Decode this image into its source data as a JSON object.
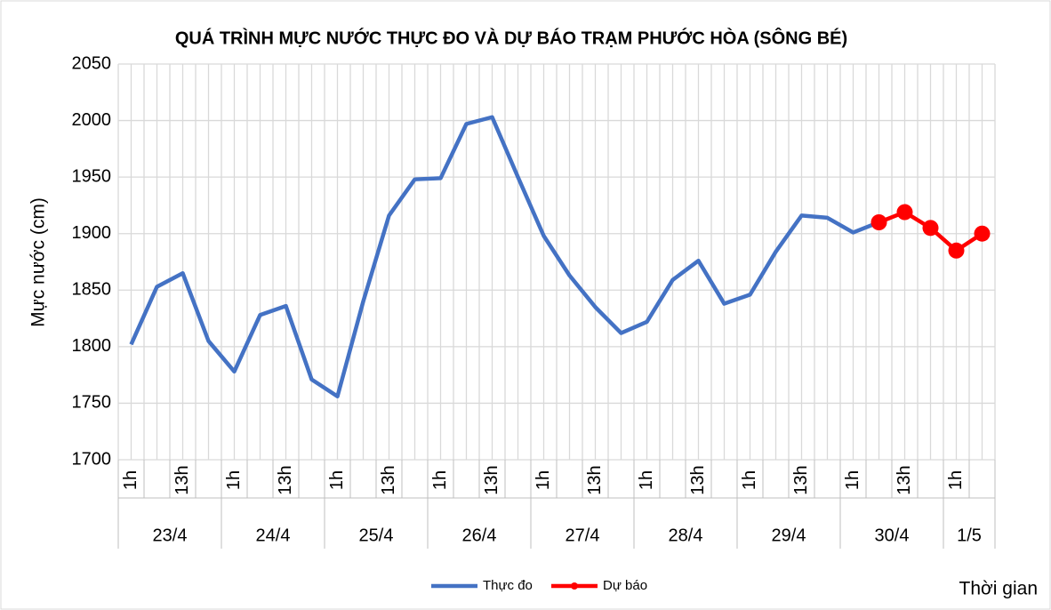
{
  "chart_data": {
    "type": "line",
    "title": "QUÁ TRÌNH MỰC NƯỚC THỰC ĐO VÀ DỰ BÁO TRẠM PHƯỚC HÒA (SÔNG BÉ)",
    "y_label": "Mực nước (cm)",
    "x_label": "Thời gian",
    "categories": [
      "1h",
      null,
      "13h",
      null,
      "1h",
      null,
      "13h",
      null,
      "1h",
      null,
      "13h",
      null,
      "1h",
      null,
      "13h",
      null,
      "1h",
      null,
      "13h",
      null,
      "1h",
      null,
      "13h",
      null,
      "1h",
      null,
      "13h",
      null,
      "1h",
      null,
      "13h",
      null,
      "1h",
      null
    ],
    "x_groups": [
      "23/4",
      "24/4",
      "25/4",
      "26/4",
      "27/4",
      "28/4",
      "29/4",
      "30/4",
      "1/5"
    ],
    "series": [
      {
        "name": "Thực đo",
        "color": "#4472c4",
        "markers": false,
        "values": [
          1802,
          1853,
          1865,
          1805,
          1778,
          1828,
          1836,
          1771,
          1756,
          1840,
          1916,
          1948,
          1949,
          1997,
          2003,
          1950,
          1898,
          1863,
          1835,
          1812,
          1822,
          1859,
          1876,
          1838,
          1846,
          1884,
          1916,
          1914,
          1901,
          1910,
          null,
          null,
          null,
          null
        ]
      },
      {
        "name": "Dự báo",
        "color": "#ff0000",
        "markers": true,
        "values": [
          null,
          null,
          null,
          null,
          null,
          null,
          null,
          null,
          null,
          null,
          null,
          null,
          null,
          null,
          null,
          null,
          null,
          null,
          null,
          null,
          null,
          null,
          null,
          null,
          null,
          null,
          null,
          null,
          null,
          1910,
          1919,
          1905,
          1885,
          1900
        ]
      }
    ],
    "ylim": [
      1700,
      2050
    ],
    "yticks": [
      1700,
      1750,
      1800,
      1850,
      1900,
      1950,
      2000,
      2050
    ],
    "grid": true,
    "legend": "bottom"
  }
}
